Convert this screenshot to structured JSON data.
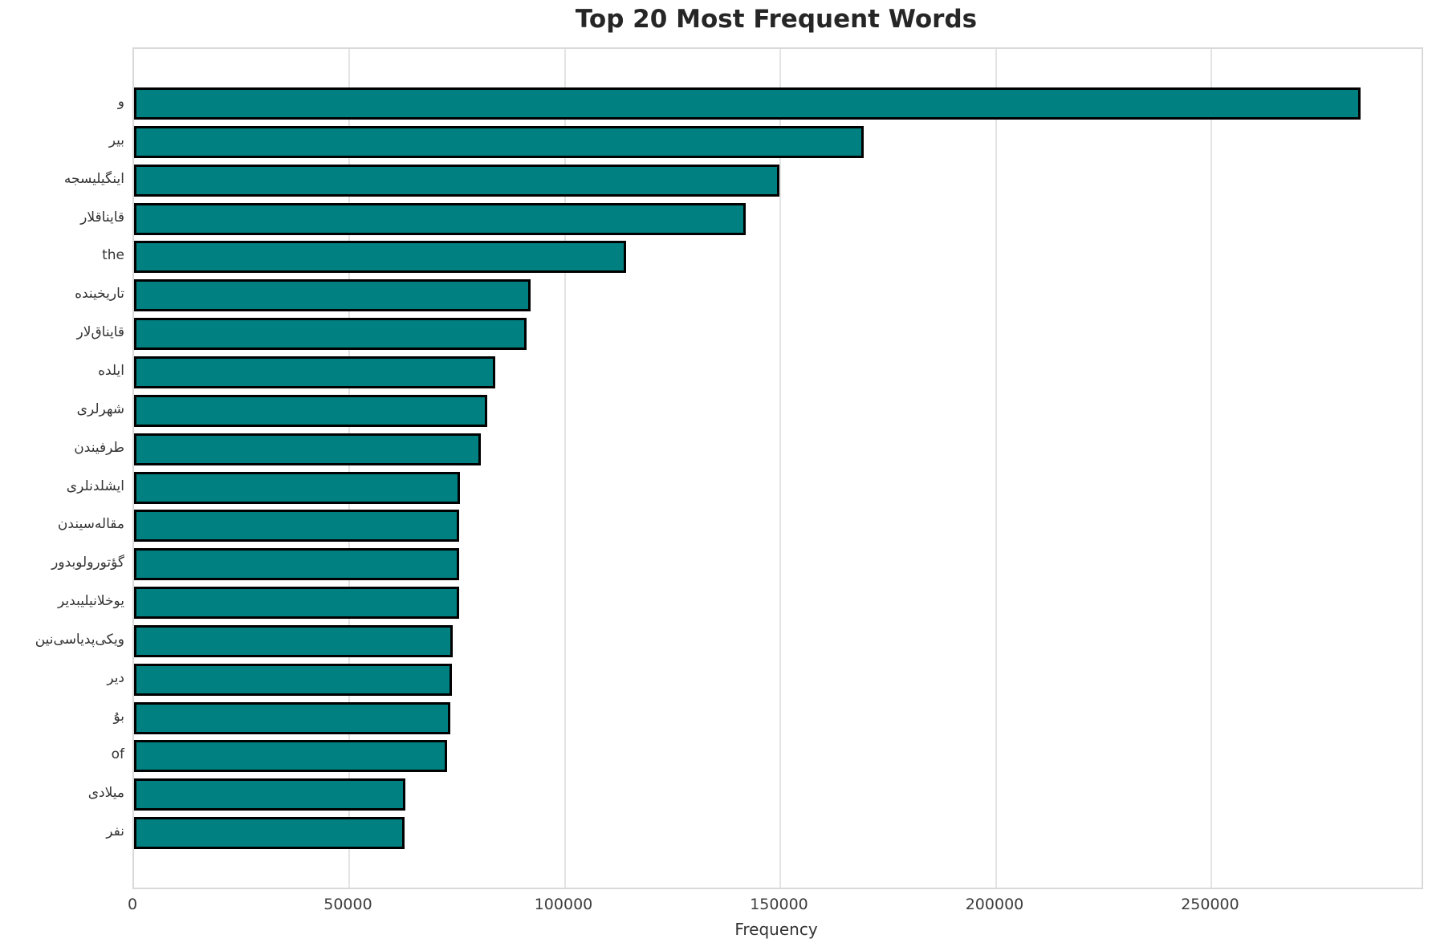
{
  "chart_data": {
    "type": "bar",
    "orientation": "horizontal",
    "title": "Top 20 Most Frequent Words",
    "xlabel": "Frequency",
    "ylabel": "",
    "categories": [
      "و",
      "بیر",
      "اینگیلیسجه",
      "قایناقلار",
      "the",
      "تاریخینده",
      "قایناق‌لار",
      "ایلده",
      "شهرلری",
      "طرفیندن",
      "ایشلدنلری",
      "مقاله‌سیندن",
      "گؤتورولوبدور",
      "یوخلانیلیبدیر",
      "ویکی‌پدیاسی‌نین",
      "دیر",
      "بۇ",
      "of",
      "میلادی",
      "نفر"
    ],
    "values": [
      284500,
      169300,
      149700,
      141900,
      114100,
      92000,
      91100,
      83800,
      82000,
      80400,
      75600,
      75500,
      75500,
      75500,
      73900,
      73700,
      73400,
      72600,
      62900,
      62700
    ],
    "xlim": [
      0,
      298700
    ],
    "x_ticks": [
      0,
      50000,
      100000,
      150000,
      200000,
      250000
    ],
    "x_tick_labels": [
      "0",
      "50000",
      "100000",
      "150000",
      "200000",
      "250000"
    ],
    "grid": true,
    "legend": false,
    "bar_color": "#008080",
    "bar_edge_color": "#000000",
    "grid_color": "#e4e4e4",
    "spine_color": "#d9d9d9",
    "background_color": "#ffffff"
  }
}
